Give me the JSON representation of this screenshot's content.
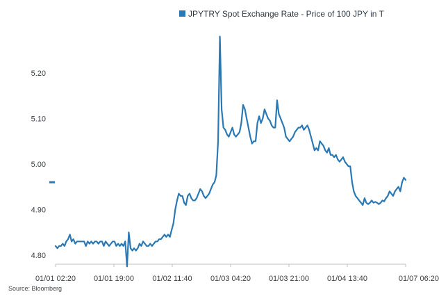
{
  "chart_data": {
    "type": "line",
    "title": "",
    "xlabel": "",
    "ylabel": "",
    "legend": "top-right",
    "grid": false,
    "series": [
      {
        "name": "JPYTRY Spot Exchange Rate - Price of 100 JPY in T",
        "color": "#2a78b4",
        "y": [
          4.82,
          4.815,
          4.82,
          4.82,
          4.825,
          4.82,
          4.83,
          4.835,
          4.845,
          4.83,
          4.835,
          4.825,
          4.83,
          4.83,
          4.83,
          4.83,
          4.83,
          4.82,
          4.83,
          4.825,
          4.83,
          4.825,
          4.83,
          4.83,
          4.825,
          4.83,
          4.83,
          4.82,
          4.83,
          4.825,
          4.82,
          4.825,
          4.83,
          4.83,
          4.82,
          4.825,
          4.82,
          4.825,
          4.82,
          4.83,
          4.775,
          4.85,
          4.815,
          4.81,
          4.815,
          4.81,
          4.815,
          4.825,
          4.82,
          4.83,
          4.825,
          4.82,
          4.82,
          4.825,
          4.82,
          4.825,
          4.83,
          4.83,
          4.835,
          4.835,
          4.84,
          4.845,
          4.84,
          4.845,
          4.84,
          4.855,
          4.87,
          4.9,
          4.92,
          4.935,
          4.93,
          4.93,
          4.915,
          4.91,
          4.93,
          4.935,
          4.925,
          4.92,
          4.92,
          4.925,
          4.935,
          4.945,
          4.94,
          4.93,
          4.925,
          4.93,
          4.935,
          4.945,
          4.955,
          4.96,
          4.975,
          5.05,
          5.28,
          5.12,
          5.08,
          5.075,
          5.065,
          5.06,
          5.07,
          5.08,
          5.065,
          5.06,
          5.065,
          5.07,
          5.09,
          5.13,
          5.12,
          5.1,
          5.08,
          5.06,
          5.045,
          5.05,
          5.05,
          5.09,
          5.105,
          5.09,
          5.1,
          5.12,
          5.11,
          5.1,
          5.095,
          5.085,
          5.08,
          5.08,
          5.14,
          5.11,
          5.1,
          5.09,
          5.08,
          5.06,
          5.055,
          5.05,
          5.055,
          5.06,
          5.07,
          5.075,
          5.08,
          5.08,
          5.085,
          5.075,
          5.08,
          5.085,
          5.075,
          5.06,
          5.045,
          5.03,
          5.035,
          5.03,
          5.05,
          5.045,
          5.04,
          5.03,
          5.025,
          5.035,
          5.02,
          5.02,
          5.015,
          5.02,
          5.01,
          5.005,
          5.01,
          5.015,
          5.005,
          5.0,
          4.995,
          4.995,
          4.96,
          4.94,
          4.93,
          4.925,
          4.92,
          4.915,
          4.91,
          4.925,
          4.915,
          4.912,
          4.915,
          4.92,
          4.915,
          4.917,
          4.915,
          4.912,
          4.915,
          4.92,
          4.918,
          4.925,
          4.93,
          4.94,
          4.935,
          4.93,
          4.94,
          4.945,
          4.95,
          4.94,
          4.96,
          4.97,
          4.965
        ]
      }
    ],
    "x_ticks": [
      "01/01 02:20",
      "01/01 19:00",
      "01/02 11:40",
      "01/03 04:20",
      "01/03 21:00",
      "01/04 13:40",
      "01/07 06:20"
    ],
    "y_ticks": [
      "4.80",
      "4.90",
      "5.00",
      "5.10",
      "5.20"
    ],
    "ylim": [
      4.78,
      5.29
    ],
    "marker_value": 4.96,
    "marker_color": "#2a78b4"
  },
  "source": "Source: Bloomberg"
}
